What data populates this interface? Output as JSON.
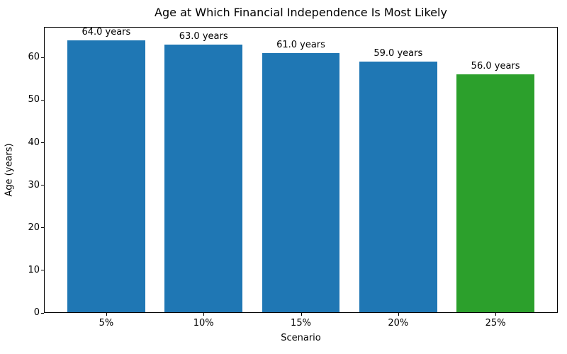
{
  "chart_data": {
    "type": "bar",
    "title": "Age at Which Financial Independence Is Most Likely",
    "xlabel": "Scenario",
    "ylabel": "Age (years)",
    "categories": [
      "5%",
      "10%",
      "15%",
      "20%",
      "25%"
    ],
    "values": [
      64.0,
      63.0,
      61.0,
      59.0,
      56.0
    ],
    "bar_labels": [
      "64.0 years",
      "63.0 years",
      "61.0 years",
      "59.0 years",
      "56.0 years"
    ],
    "bar_colors": [
      "#1f77b4",
      "#1f77b4",
      "#1f77b4",
      "#1f77b4",
      "#2ca02c"
    ],
    "yticks": [
      0,
      10,
      20,
      30,
      40,
      50,
      60
    ],
    "ylim": [
      0,
      67.2
    ],
    "xlim": [
      -0.64,
      4.64
    ],
    "bar_width": 0.8,
    "grid": false,
    "legend": "none",
    "axis_color": "#000000",
    "background_color": "#ffffff"
  }
}
